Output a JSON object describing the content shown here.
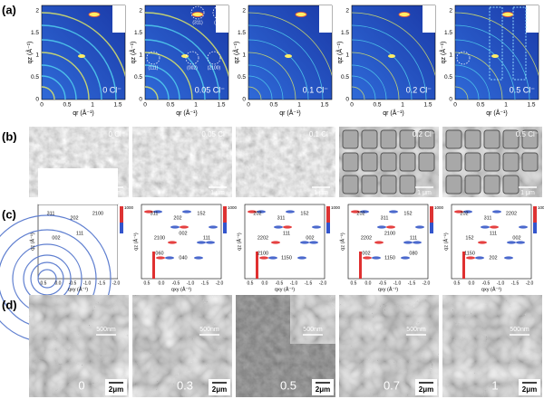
{
  "panel_a": {
    "label": "(a)",
    "y_label": "qz (Å⁻¹)",
    "x_label": "qr (Å⁻¹)",
    "yticks": [
      "0",
      "0.5",
      "1",
      "1.5",
      "2"
    ],
    "xticks": [
      "0",
      "0.5",
      "1",
      "1.5"
    ],
    "items": [
      {
        "caption": "0 Cl⁻",
        "annotations": []
      },
      {
        "caption": "0.05 Cl⁻",
        "annotations": [
          "(311)",
          "(004)",
          "(111)",
          "(002)",
          "(2100)"
        ]
      },
      {
        "caption": "0.1 Cl⁻",
        "annotations": []
      },
      {
        "caption": "0.2 Cl⁻",
        "annotations": []
      },
      {
        "caption": "0.5 Cl⁻",
        "annotations": []
      }
    ]
  },
  "panel_b": {
    "label": "(b)",
    "scale": "1 μm",
    "captions": [
      "0 Cl⁻",
      "0.05 Cl⁻",
      "0.1 Cl⁻",
      "0.2 Cl⁻",
      "0.5 Cl⁻"
    ]
  },
  "panel_c": {
    "label": "(c)",
    "y_label": "qz (Å⁻¹)",
    "x_label": "qxy (Å⁻¹)",
    "colorbar_max": "1000",
    "xticks": [
      "0.5",
      "0.0",
      "-0.5",
      "-1.0",
      "-1.5",
      "-2.0"
    ],
    "planes": [
      [
        "311",
        "202",
        "2100",
        "002",
        "111"
      ],
      [
        "311",
        "202",
        "152",
        "2100",
        "002",
        "111",
        "060",
        "040"
      ],
      [
        "202",
        "311",
        "152",
        "2202",
        "111",
        "002",
        "2100",
        "1150"
      ],
      [
        "202",
        "311",
        "152",
        "2202",
        "2100",
        "111",
        "002",
        "1150",
        "080"
      ],
      [
        "202",
        "311",
        "2202",
        "152",
        "111",
        "002",
        "1150",
        "202"
      ]
    ]
  },
  "panel_d": {
    "label": "(d)",
    "scale": "2μm",
    "inset_scale": "500nm",
    "captions": [
      "0",
      "0.3",
      "0.5",
      "0.7",
      "1"
    ]
  }
}
